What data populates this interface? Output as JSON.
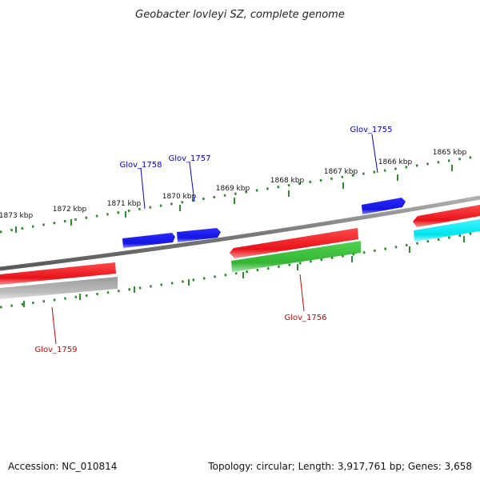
{
  "title": "Geobacter lovleyi SZ, complete genome",
  "accession": "Accession: NC_010814",
  "summary": "Topology: circular; Length: 3,917,761 bp; Genes: 3,658",
  "colors": {
    "forward_gene": "#e8121a",
    "reverse_gene": "#1515e0",
    "rna": "#3fbf3f",
    "other": "#00e5ee",
    "pseudo": "#c8c8c8",
    "backbone": "#808080",
    "ticks": "#2e8b2e",
    "label_blue": "#0000cc",
    "label_red": "#cc0000"
  },
  "scale_labels": [
    "1865 kbp",
    "1866 kbp",
    "1867 kbp",
    "1868 kbp",
    "1869 kbp",
    "1870 kbp",
    "1871 kbp",
    "1872 kbp",
    "1873 kbp"
  ],
  "gene_labels": [
    {
      "name": "Glov_1755",
      "color": "label_blue"
    },
    {
      "name": "Glov_1757",
      "color": "label_blue"
    },
    {
      "name": "Glov_1758",
      "color": "label_blue"
    },
    {
      "name": "Glov_1756",
      "color": "label_red"
    },
    {
      "name": "Glov_1759",
      "color": "label_red"
    }
  ]
}
